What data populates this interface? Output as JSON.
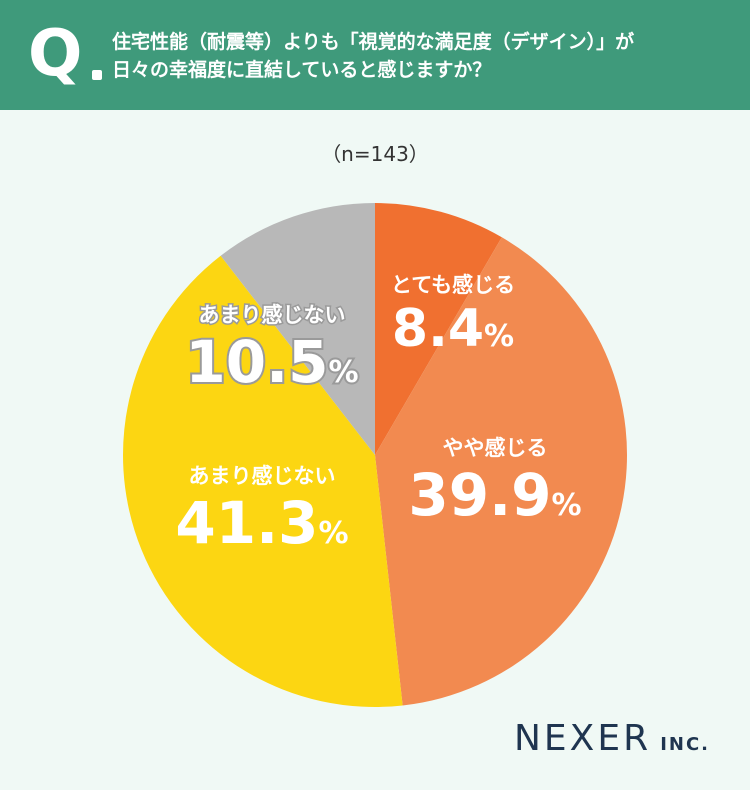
{
  "header": {
    "q_mark": "Q",
    "question_line1": "住宅性能（耐震等）よりも「視覚的な満足度（デザイン）」が",
    "question_line2": "日々の幸福度に直結していると感じますか？"
  },
  "sample_label": "（n=143）",
  "chart_data": {
    "type": "pie",
    "title": "",
    "start_angle_deg": 0,
    "direction": "clockwise",
    "slices": [
      {
        "label": "とても感じる",
        "value": 8.4,
        "display": "8.4",
        "color": "#f07030"
      },
      {
        "label": "やや感じる",
        "value": 39.9,
        "display": "39.9",
        "color": "#f28a50"
      },
      {
        "label": "あまり感じない",
        "value": 41.3,
        "display": "41.3",
        "color": "#fcd612"
      },
      {
        "label": "あまり感じない",
        "value": 10.5,
        "display": "10.5",
        "color": "#b8b8b8"
      }
    ],
    "percent_symbol": "%"
  },
  "logo": {
    "main": "NEXER",
    "sub": "INC."
  }
}
